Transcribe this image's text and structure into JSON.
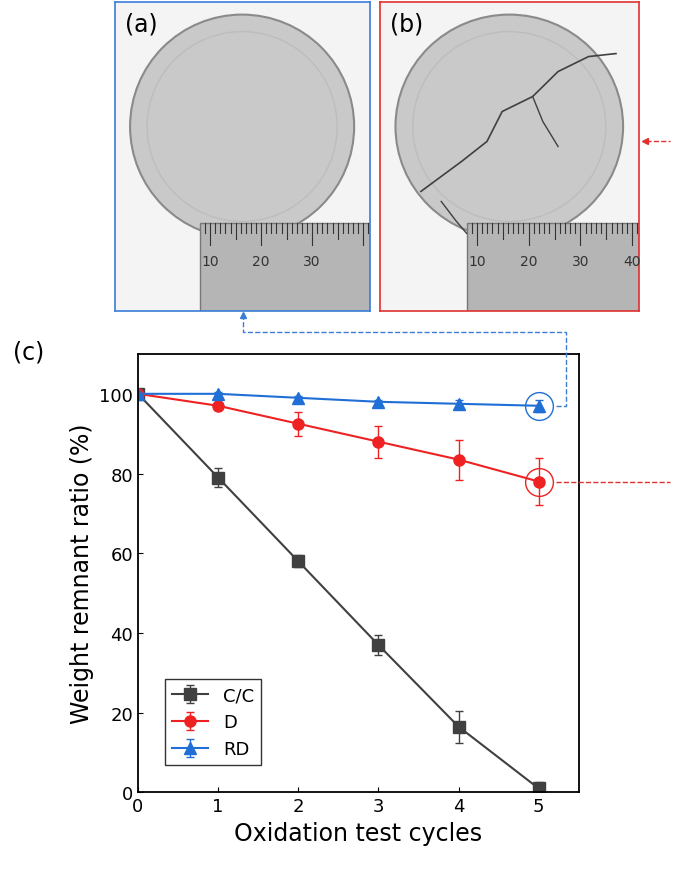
{
  "panels": [
    {
      "label": "(a)",
      "ruler_ticks": [
        10,
        20,
        30
      ]
    },
    {
      "label": "(b)",
      "ruler_ticks": [
        10,
        20,
        30,
        40
      ]
    }
  ],
  "chart_data": {
    "type": "line",
    "panel_label": "(c)",
    "x_label": "Oxidation test cycles",
    "y_label": "Weight remnant ratio (%)",
    "x": [
      0,
      1,
      2,
      3,
      4,
      5
    ],
    "xlim": [
      0,
      5.5
    ],
    "xticks": [
      0,
      1,
      2,
      3,
      4,
      5
    ],
    "ylim": [
      0,
      110
    ],
    "yticks": [
      0,
      20,
      40,
      60,
      80,
      100
    ],
    "legend": "lower left",
    "series": [
      {
        "name": "C/C",
        "color": "#404040",
        "marker": "square",
        "values": [
          100,
          79,
          58,
          37,
          16.5,
          1
        ],
        "errors": [
          0,
          2.5,
          1.5,
          2.5,
          4,
          1.5
        ]
      },
      {
        "name": "D",
        "color": "#ee2222",
        "marker": "circle",
        "values": [
          100,
          97,
          92.5,
          88,
          83.5,
          78
        ],
        "errors": [
          0,
          1,
          3,
          4,
          5,
          6
        ]
      },
      {
        "name": "RD",
        "color": "#1f6fd6",
        "marker": "triangle",
        "values": [
          100,
          100,
          99,
          98,
          97.5,
          97
        ],
        "errors": [
          0,
          0.5,
          0.5,
          0.5,
          1,
          1.5
        ]
      }
    ]
  }
}
